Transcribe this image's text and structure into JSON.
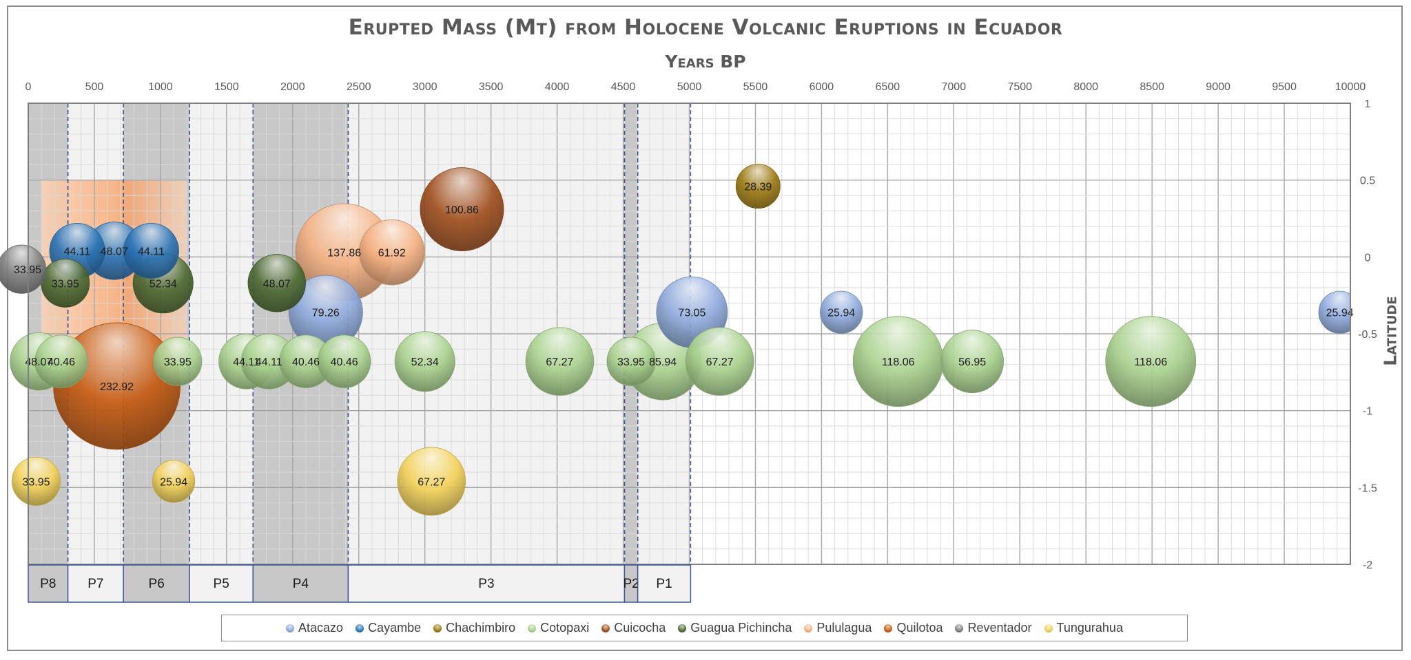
{
  "colors": {
    "Atacazo": "#8faadc",
    "Cayambe": "#2e75b6",
    "Chachimbiro": "#9c7a12",
    "Cotopaxi": "#a9d18e",
    "Cuicocha": "#a0501f",
    "Guagua Pichincha": "#4e6b35",
    "Pululagua": "#f4b183",
    "Quilotoa": "#c55a11",
    "Reventador": "#7f7f7f",
    "Tungurahua": "#f2d15a"
  },
  "chart_data": {
    "type": "bubble",
    "title": "Erupted Mass (Mt) from Holocene Volcanic Eruptions in Ecuador",
    "xlabel": "Years BP",
    "ylabel": "Latitude",
    "xlim": [
      0,
      10000
    ],
    "ylim": [
      -2,
      1
    ],
    "x_ticks": [
      "0",
      "500",
      "1000",
      "1500",
      "2000",
      "2500",
      "3000",
      "3500",
      "4000",
      "4500",
      "5000",
      "5500",
      "6000",
      "6500",
      "7000",
      "7500",
      "8000",
      "8500",
      "9000",
      "9500",
      "10000"
    ],
    "y_ticks": [
      "1",
      "0.5",
      "0",
      "-0.5",
      "-1",
      "-1.5",
      "-2"
    ],
    "grid": true,
    "legend": "bottom",
    "periods": [
      {
        "label": "P8",
        "start": 0,
        "end": 300
      },
      {
        "label": "P7",
        "start": 300,
        "end": 720
      },
      {
        "label": "P6",
        "start": 720,
        "end": 1220
      },
      {
        "label": "P5",
        "start": 1220,
        "end": 1700
      },
      {
        "label": "P4",
        "start": 1700,
        "end": 2420
      },
      {
        "label": "P3",
        "start": 2420,
        "end": 4510
      },
      {
        "label": "P2",
        "start": 4510,
        "end": 4610
      },
      {
        "label": "P1",
        "start": 4610,
        "end": 5010
      }
    ],
    "series": [
      {
        "name": "Atacazo",
        "points": [
          {
            "x": 2250,
            "y": -0.36,
            "mass": 79.26
          },
          {
            "x": 5020,
            "y": -0.36,
            "mass": 73.05
          },
          {
            "x": 6150,
            "y": -0.36,
            "mass": 25.94
          },
          {
            "x": 9920,
            "y": -0.36,
            "mass": 25.94
          }
        ]
      },
      {
        "name": "Cayambe",
        "points": [
          {
            "x": 370,
            "y": 0.04,
            "mass": 44.11
          },
          {
            "x": 650,
            "y": 0.04,
            "mass": 48.07
          },
          {
            "x": 930,
            "y": 0.04,
            "mass": 44.11
          }
        ]
      },
      {
        "name": "Chachimbiro",
        "points": [
          {
            "x": 5520,
            "y": 0.46,
            "mass": 28.39
          }
        ]
      },
      {
        "name": "Cotopaxi",
        "points": [
          {
            "x": 80,
            "y": -0.68,
            "mass": 48.07
          },
          {
            "x": 250,
            "y": -0.68,
            "mass": 40.46
          },
          {
            "x": 1130,
            "y": -0.68,
            "mass": 33.95
          },
          {
            "x": 1650,
            "y": -0.68,
            "mass": 44.11
          },
          {
            "x": 1820,
            "y": -0.68,
            "mass": 44.11
          },
          {
            "x": 2100,
            "y": -0.68,
            "mass": 40.46
          },
          {
            "x": 2390,
            "y": -0.68,
            "mass": 40.46
          },
          {
            "x": 3000,
            "y": -0.68,
            "mass": 52.34
          },
          {
            "x": 4020,
            "y": -0.68,
            "mass": 67.27
          },
          {
            "x": 4560,
            "y": -0.68,
            "mass": 33.95
          },
          {
            "x": 4800,
            "y": -0.68,
            "mass": 85.94
          },
          {
            "x": 5230,
            "y": -0.68,
            "mass": 67.27
          },
          {
            "x": 6580,
            "y": -0.68,
            "mass": 118.06
          },
          {
            "x": 7140,
            "y": -0.68,
            "mass": 56.95
          },
          {
            "x": 8490,
            "y": -0.68,
            "mass": 118.06
          }
        ]
      },
      {
        "name": "Cuicocha",
        "points": [
          {
            "x": 3280,
            "y": 0.31,
            "mass": 100.86
          }
        ]
      },
      {
        "name": "Guagua Pichincha",
        "points": [
          {
            "x": 280,
            "y": -0.17,
            "mass": 33.95
          },
          {
            "x": 1020,
            "y": -0.17,
            "mass": 52.34
          },
          {
            "x": 1880,
            "y": -0.17,
            "mass": 48.07
          }
        ]
      },
      {
        "name": "Pululagua",
        "points": [
          {
            "x": 2390,
            "y": 0.03,
            "mass": 137.86
          },
          {
            "x": 2750,
            "y": 0.03,
            "mass": 61.92
          }
        ]
      },
      {
        "name": "Quilotoa",
        "points": [
          {
            "x": 670,
            "y": -0.84,
            "mass": 232.92
          }
        ]
      },
      {
        "name": "Reventador",
        "points": [
          {
            "x": -50,
            "y": -0.08,
            "mass": 33.95
          }
        ]
      },
      {
        "name": "Tungurahua",
        "points": [
          {
            "x": 60,
            "y": -1.46,
            "mass": 33.95
          },
          {
            "x": 1100,
            "y": -1.46,
            "mass": 25.94
          },
          {
            "x": 3050,
            "y": -1.46,
            "mass": 67.27
          }
        ]
      }
    ]
  }
}
